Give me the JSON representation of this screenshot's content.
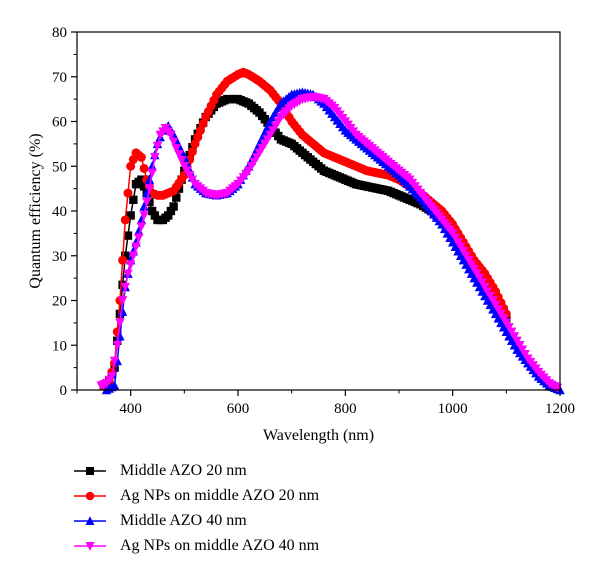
{
  "chart_data": {
    "type": "scatter",
    "xlabel": "Wavelength (nm)",
    "ylabel": "Quantum efficiency (%)",
    "xlim": [
      300,
      1200
    ],
    "ylim": [
      0,
      80
    ],
    "xticks": [
      400,
      600,
      800,
      1000,
      1200
    ],
    "yticks": [
      0,
      10,
      20,
      30,
      40,
      50,
      60,
      70,
      80
    ],
    "grid": false,
    "legend_position": "bottom",
    "series": [
      {
        "name": "Middle AZO 20 nm",
        "color": "#000000",
        "marker": "square",
        "x": [
          350,
          360,
          370,
          380,
          390,
          400,
          410,
          420,
          430,
          440,
          450,
          460,
          470,
          480,
          500,
          520,
          540,
          560,
          580,
          600,
          620,
          640,
          660,
          680,
          700,
          720,
          740,
          760,
          780,
          800,
          820,
          840,
          860,
          880,
          900,
          920,
          940,
          960,
          980,
          1000,
          1020,
          1040,
          1060,
          1080,
          1100
        ],
        "y": [
          1,
          2,
          5,
          17,
          30,
          39,
          46,
          47,
          44,
          40,
          38,
          38,
          39,
          41,
          49,
          56,
          61,
          64,
          65,
          65,
          64,
          62,
          59,
          56,
          55,
          53,
          51,
          49,
          48,
          47,
          46,
          45.5,
          45,
          44.5,
          43.5,
          42.5,
          41.5,
          40,
          38,
          35,
          31,
          27,
          23,
          19,
          16
        ]
      },
      {
        "name": "Ag NPs on middle AZO 20 nm",
        "color": "#ff0000",
        "marker": "circle",
        "x": [
          350,
          360,
          370,
          380,
          390,
          400,
          410,
          420,
          430,
          440,
          450,
          460,
          480,
          500,
          520,
          540,
          560,
          580,
          600,
          610,
          620,
          640,
          660,
          680,
          700,
          720,
          740,
          760,
          780,
          800,
          820,
          840,
          860,
          880,
          900,
          920,
          940,
          960,
          980,
          1000,
          1020,
          1040,
          1060,
          1080,
          1100
        ],
        "y": [
          1,
          2,
          6,
          20,
          38,
          50,
          53,
          52,
          47,
          44,
          43.5,
          43.5,
          44.5,
          48,
          55,
          61,
          66,
          69,
          70.5,
          71,
          70.5,
          69,
          67,
          64,
          60,
          57,
          55,
          53,
          52,
          51,
          50,
          49,
          48.5,
          48,
          47,
          45.5,
          44,
          42,
          40,
          37,
          33,
          29,
          26,
          22,
          17
        ]
      },
      {
        "name": "Middle AZO 40 nm",
        "color": "#0000ff",
        "marker": "triangle-up",
        "x": [
          355,
          370,
          380,
          390,
          400,
          410,
          420,
          430,
          440,
          450,
          460,
          470,
          480,
          500,
          520,
          540,
          560,
          580,
          600,
          620,
          640,
          660,
          680,
          700,
          720,
          740,
          760,
          780,
          800,
          820,
          840,
          860,
          880,
          900,
          920,
          940,
          960,
          980,
          1000,
          1020,
          1040,
          1060,
          1080,
          1100,
          1120,
          1140,
          1160,
          1180,
          1200
        ],
        "y": [
          0,
          1,
          12,
          23,
          29,
          33,
          38,
          44,
          50,
          55,
          58,
          59,
          57,
          52,
          46,
          44,
          43.5,
          44,
          46,
          50,
          55,
          60,
          64,
          66,
          66.5,
          66,
          64,
          61,
          58,
          56,
          54,
          52,
          50,
          48,
          45.5,
          43,
          40,
          37,
          33,
          29,
          25,
          21,
          17,
          13,
          9,
          6,
          3,
          1,
          0
        ]
      },
      {
        "name": "Ag NPs on middle AZO 40 nm",
        "color": "#ff00ff",
        "marker": "triangle-down",
        "x": [
          345,
          355,
          365,
          375,
          385,
          395,
          405,
          415,
          425,
          435,
          445,
          455,
          465,
          475,
          485,
          500,
          520,
          540,
          560,
          580,
          600,
          620,
          640,
          660,
          680,
          700,
          720,
          740,
          760,
          780,
          800,
          820,
          840,
          860,
          880,
          900,
          920,
          940,
          960,
          980,
          1000,
          1020,
          1040,
          1060,
          1080,
          1100,
          1120,
          1140,
          1160,
          1180,
          1195
        ],
        "y": [
          1,
          1.5,
          3,
          10,
          20,
          26,
          30,
          34,
          39,
          45,
          52,
          57,
          58.5,
          57,
          54,
          50,
          46,
          44,
          43.5,
          44,
          46,
          49,
          53,
          57,
          61,
          63.5,
          65,
          65.5,
          65,
          63,
          60,
          57,
          55,
          53,
          51,
          49,
          47,
          44,
          41,
          38,
          35,
          31,
          27,
          23,
          19,
          15,
          11,
          7,
          4,
          1.5,
          0.5
        ]
      }
    ]
  }
}
